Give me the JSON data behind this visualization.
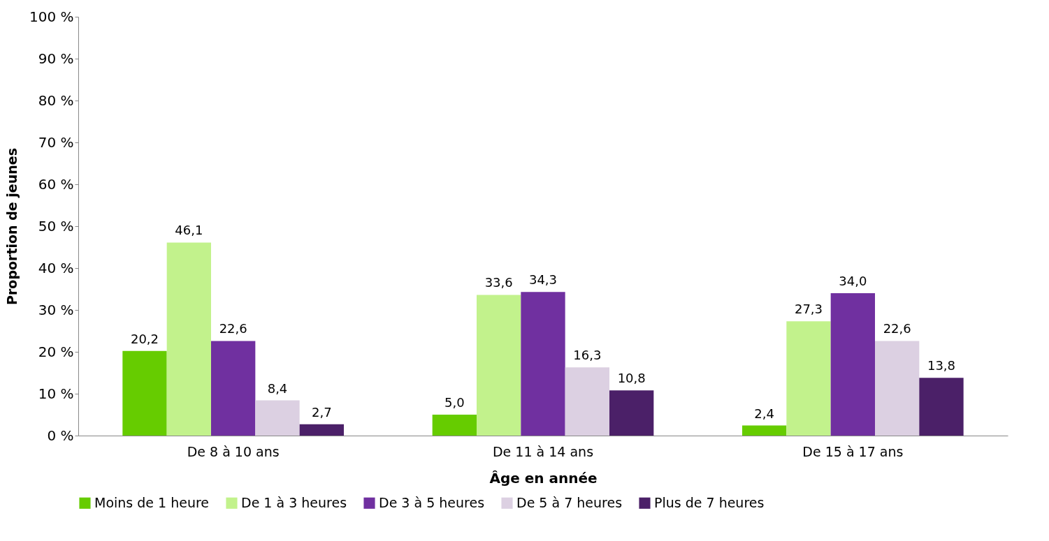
{
  "chart_data": {
    "type": "bar",
    "xlabel": "Âge en année",
    "ylabel": "Proportion de jeunes",
    "categories": [
      "De 8 à 10 ans",
      "De 11 à 14 ans",
      "De 15 à 17 ans"
    ],
    "series": [
      {
        "name": "Moins de 1 heure",
        "color": "#66cc00",
        "values": [
          20.2,
          5.0,
          2.4
        ]
      },
      {
        "name": "De 1 à 3 heures",
        "color": "#c2f28c",
        "values": [
          46.1,
          33.6,
          27.3
        ]
      },
      {
        "name": "De 3 à 5 heures",
        "color": "#7030a0",
        "values": [
          22.6,
          34.3,
          34.0
        ]
      },
      {
        "name": "De 5 à 7 heures",
        "color": "#dcd0e2",
        "values": [
          8.4,
          16.3,
          22.6
        ]
      },
      {
        "name": "Plus de 7 heures",
        "color": "#4b2068",
        "values": [
          2.7,
          10.8,
          13.8
        ]
      }
    ],
    "value_labels": [
      [
        "20,2",
        "5,0",
        "2,4"
      ],
      [
        "46,1",
        "33,6",
        "27,3"
      ],
      [
        "22,6",
        "34,3",
        "34,0"
      ],
      [
        "8,4",
        "16,3",
        "22,6"
      ],
      [
        "2,7",
        "10,8",
        "13,8"
      ]
    ],
    "ylim": [
      0,
      100
    ],
    "yticks": [
      {
        "value": 0,
        "label": "0 %"
      },
      {
        "value": 10,
        "label": "10 %"
      },
      {
        "value": 20,
        "label": "20 %"
      },
      {
        "value": 30,
        "label": "30 %"
      },
      {
        "value": 40,
        "label": "40 %"
      },
      {
        "value": 50,
        "label": "50 %"
      },
      {
        "value": 60,
        "label": "60 %"
      },
      {
        "value": 70,
        "label": "70 %"
      },
      {
        "value": 80,
        "label": "80 %"
      },
      {
        "value": 90,
        "label": "90 %"
      },
      {
        "value": 100,
        "label": "100 %"
      }
    ],
    "grid": false,
    "legend": "bottom"
  }
}
